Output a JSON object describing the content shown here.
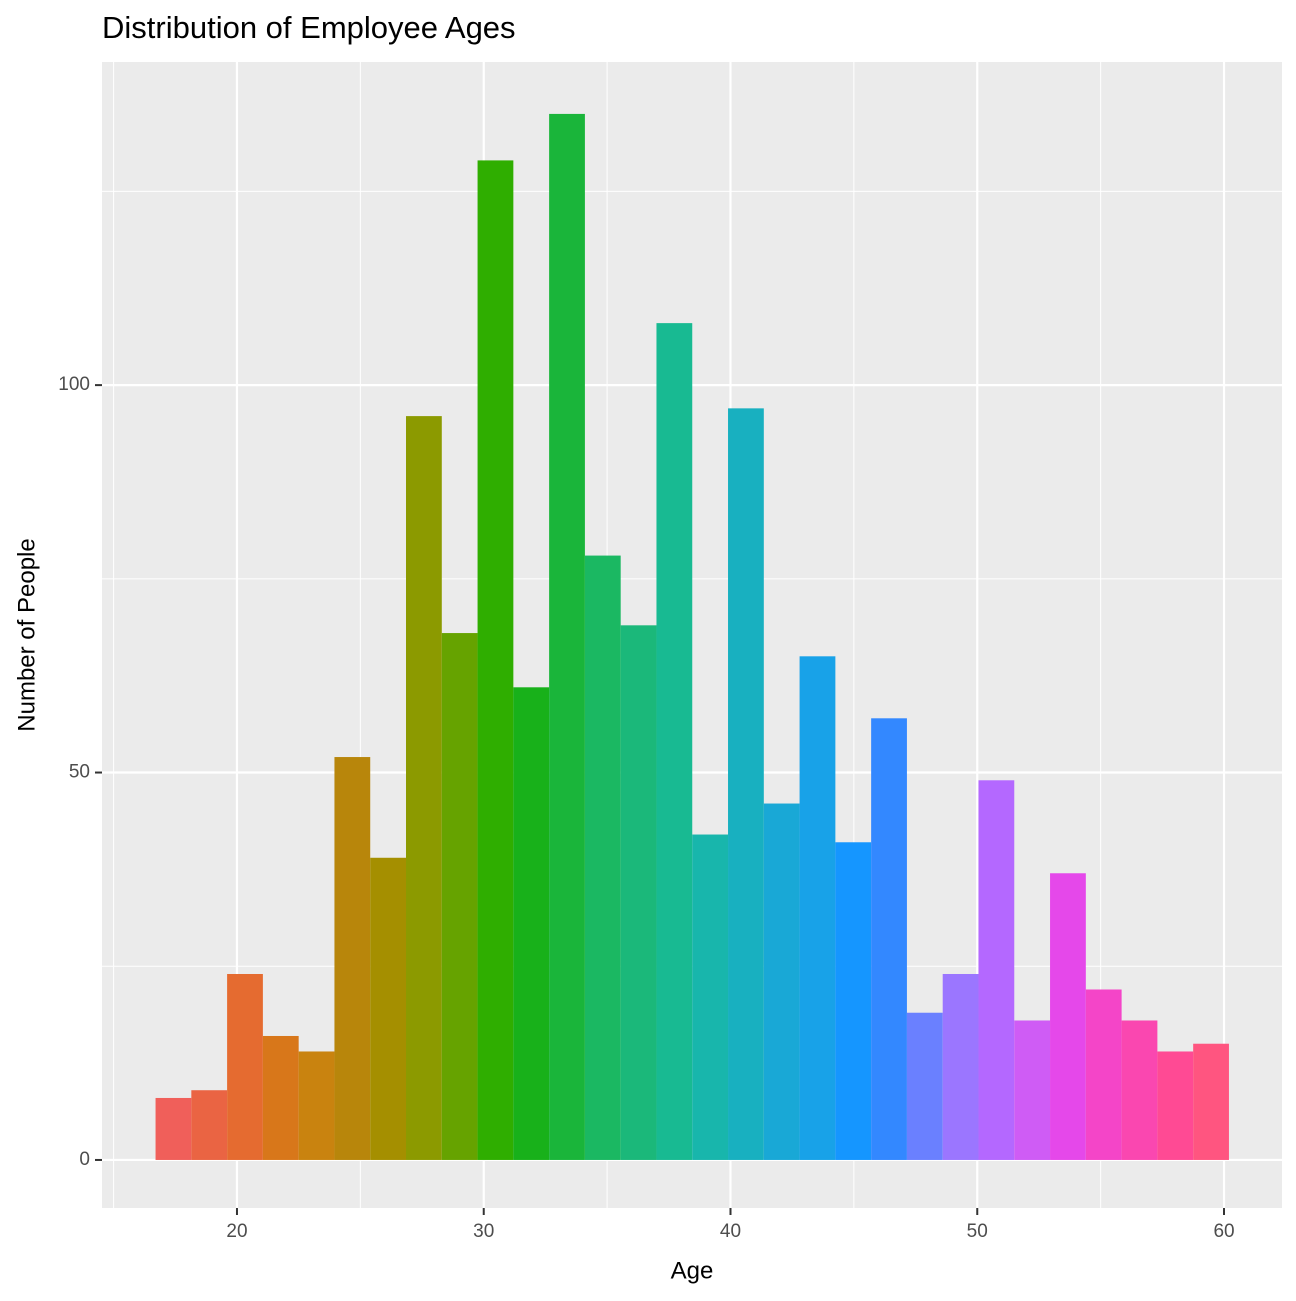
{
  "chart_data": {
    "type": "histogram",
    "title": "Distribution of Employee Ages",
    "xlabel": "Age",
    "ylabel": "Number of People",
    "bins": [
      16.7,
      18.15,
      19.6,
      21.05,
      22.5,
      23.95,
      25.4,
      26.85,
      28.3,
      29.75,
      31.2,
      32.65,
      34.1,
      35.55,
      37.0,
      38.45,
      39.9,
      41.35,
      42.8,
      44.25,
      45.7,
      47.15,
      48.6,
      50.05,
      51.5,
      52.95,
      54.4,
      55.85,
      57.3,
      58.75,
      60.2
    ],
    "counts": [
      8,
      9,
      24,
      16,
      14,
      52,
      39,
      96,
      68,
      129,
      61,
      135,
      78,
      69,
      108,
      42,
      97,
      46,
      65,
      41,
      57,
      19,
      24,
      49,
      18,
      37,
      22,
      18,
      14,
      15
    ],
    "colors": [
      "#F05F5A",
      "#EA6443",
      "#E56B30",
      "#D8771A",
      "#C9830F",
      "#B8860B",
      "#A58F00",
      "#8C9A00",
      "#66A300",
      "#2FAE00",
      "#18B11A",
      "#1AB53A",
      "#1BB862",
      "#1BB87A",
      "#18BA92",
      "#18B6AC",
      "#18B0C0",
      "#19A8D6",
      "#18A2E8",
      "#1596FF",
      "#3388FF",
      "#6A80FF",
      "#9B76FF",
      "#B468FF",
      "#CF5CF5",
      "#E548EA",
      "#F445C8",
      "#FA47B0",
      "#FF4A94",
      "#FF5580"
    ],
    "xlim": [
      14.53,
      62.35
    ],
    "ylim": [
      -6.2,
      141.7
    ],
    "xticks": [
      20,
      30,
      40,
      50,
      60
    ],
    "yticks": [
      0,
      50,
      100
    ],
    "xminorticks": [
      15,
      25,
      35,
      45,
      55
    ],
    "yminorticks": [
      25,
      75,
      125
    ],
    "grid": true
  }
}
